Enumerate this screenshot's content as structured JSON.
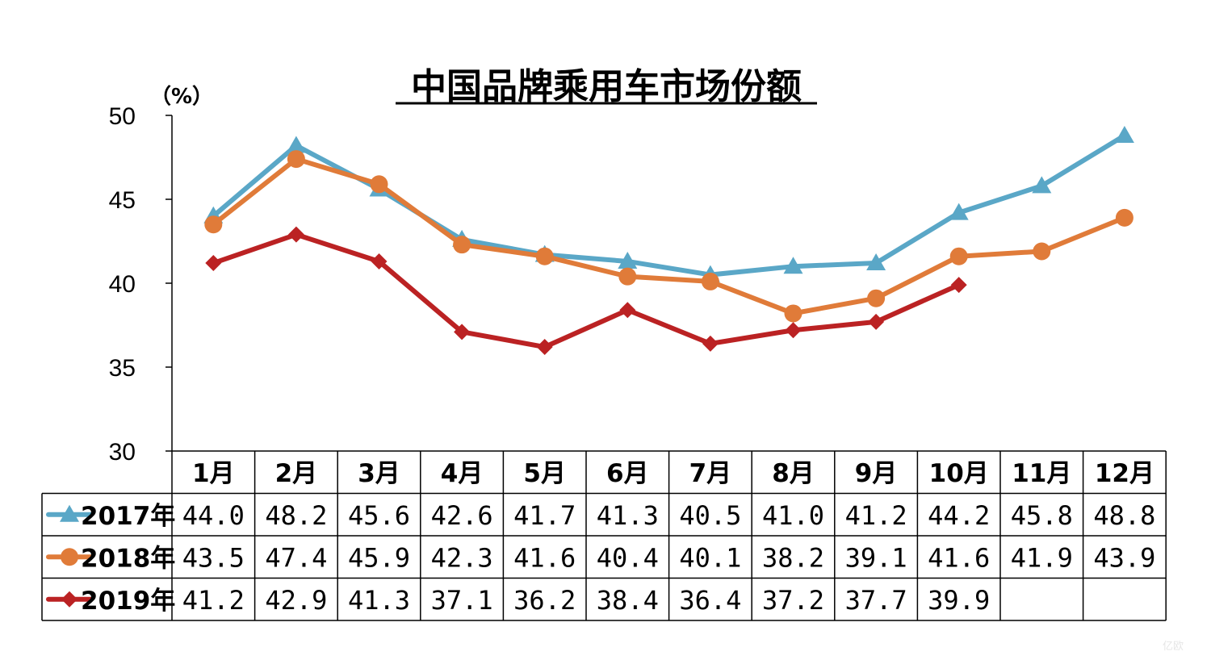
{
  "watermark": "亿欧",
  "chart_data": {
    "type": "line",
    "title": "中国品牌乘用车市场份额",
    "ylabel": "（%）",
    "ylim": [
      30,
      50
    ],
    "yticks": [
      "50",
      "45",
      "40",
      "35",
      "30"
    ],
    "grid": false,
    "legend": "table-rows",
    "categories": [
      "1月",
      "2月",
      "3月",
      "4月",
      "5月",
      "6月",
      "7月",
      "8月",
      "9月",
      "10月",
      "11月",
      "12月"
    ],
    "series": [
      {
        "name": "2017年",
        "color": "#5aa7c7",
        "marker": "triangle",
        "values": [
          44.0,
          48.2,
          45.6,
          42.6,
          41.7,
          41.3,
          40.5,
          41.0,
          41.2,
          44.2,
          45.8,
          48.8
        ],
        "labels": [
          "44.0",
          "48.2",
          "45.6",
          "42.6",
          "41.7",
          "41.3",
          "40.5",
          "41.0",
          "41.2",
          "44.2",
          "45.8",
          "48.8"
        ]
      },
      {
        "name": "2018年",
        "color": "#e07b39",
        "marker": "circle",
        "values": [
          43.5,
          47.4,
          45.9,
          42.3,
          41.6,
          40.4,
          40.1,
          38.2,
          39.1,
          41.6,
          41.9,
          43.9
        ],
        "labels": [
          "43.5",
          "47.4",
          "45.9",
          "42.3",
          "41.6",
          "40.4",
          "40.1",
          "38.2",
          "39.1",
          "41.6",
          "41.9",
          "43.9"
        ]
      },
      {
        "name": "2019年",
        "color": "#bb2223",
        "marker": "diamond",
        "values": [
          41.2,
          42.9,
          41.3,
          37.1,
          36.2,
          38.4,
          36.4,
          37.2,
          37.7,
          39.9,
          null,
          null
        ],
        "labels": [
          "41.2",
          "42.9",
          "41.3",
          "37.1",
          "36.2",
          "38.4",
          "36.4",
          "37.2",
          "37.7",
          "39.9",
          "",
          ""
        ]
      }
    ]
  }
}
